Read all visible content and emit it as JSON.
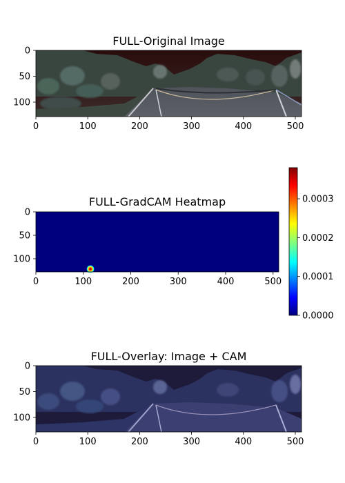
{
  "panels": [
    {
      "id": "original",
      "title": "FULL-Original Image",
      "xlim": [
        0,
        512
      ],
      "ylim": [
        128,
        0
      ],
      "xticks": [
        0,
        100,
        200,
        300,
        400,
        500
      ],
      "yticks": [
        0,
        50,
        100
      ],
      "content": "photo-equirect-forest-road"
    },
    {
      "id": "gradcam",
      "title": "FULL-GradCAM Heatmap",
      "xlim": [
        0,
        512
      ],
      "ylim": [
        128,
        0
      ],
      "xticks": [
        0,
        100,
        200,
        300,
        400,
        500
      ],
      "yticks": [
        0,
        50,
        100
      ],
      "content": "heatmap",
      "background_color": "#00007f",
      "hotspot": {
        "x": 115,
        "y": 122,
        "radius": 6
      }
    },
    {
      "id": "overlay",
      "title": "FULL-Overlay: Image + CAM",
      "xlim": [
        0,
        512
      ],
      "ylim": [
        128,
        0
      ],
      "xticks": [
        0,
        100,
        200,
        300,
        400,
        500
      ],
      "yticks": [
        0,
        50,
        100
      ],
      "content": "photo-with-blue-tint"
    }
  ],
  "colorbar": {
    "ticks": [
      "0.0003",
      "0.0002",
      "0.0001",
      "0.0000"
    ],
    "tick_values": [
      0.0003,
      0.0002,
      0.0001,
      0.0
    ],
    "range": [
      0.0,
      0.00038
    ],
    "colormap": "jet",
    "colors": [
      "#00007f",
      "#0000ff",
      "#00ffff",
      "#ffff00",
      "#ff0000",
      "#7f0000"
    ]
  },
  "chart_data": [
    {
      "type": "heatmap",
      "title": "FULL-Original Image",
      "xlabel": "",
      "ylabel": "",
      "xlim": [
        0,
        512
      ],
      "ylim": [
        128,
        0
      ],
      "xticks": [
        0,
        100,
        200,
        300,
        400,
        500
      ],
      "yticks": [
        0,
        50,
        100
      ],
      "grid": false
    },
    {
      "type": "heatmap",
      "title": "FULL-GradCAM Heatmap",
      "xlabel": "",
      "ylabel": "",
      "xlim": [
        0,
        512
      ],
      "ylim": [
        128,
        0
      ],
      "xticks": [
        0,
        100,
        200,
        300,
        400,
        500
      ],
      "yticks": [
        0,
        50,
        100
      ],
      "colorbar_range": [
        0.0,
        0.00038
      ],
      "background_value": 0.0,
      "peak": {
        "x": 115,
        "y": 122,
        "value": 0.00038
      },
      "grid": false
    },
    {
      "type": "heatmap",
      "title": "FULL-Overlay: Image + CAM",
      "xlabel": "",
      "ylabel": "",
      "xlim": [
        0,
        512
      ],
      "ylim": [
        128,
        0
      ],
      "xticks": [
        0,
        100,
        200,
        300,
        400,
        500
      ],
      "yticks": [
        0,
        50,
        100
      ],
      "grid": false
    }
  ]
}
